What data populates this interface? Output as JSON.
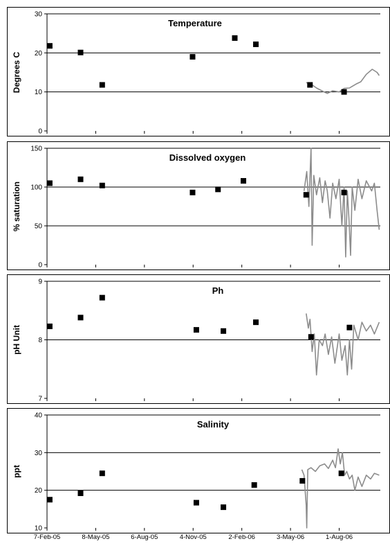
{
  "chart_data": [
    {
      "type": "scatter",
      "title": "Temperature",
      "ylabel": "Degrees C",
      "ylim": [
        0,
        30
      ],
      "yticks": [
        "0",
        "10",
        "20",
        "30"
      ],
      "grid": true,
      "series": [
        {
          "kind": "points",
          "points": [
            [
              "2005-02-12",
              21.8
            ],
            [
              "2005-04-10",
              20.1
            ],
            [
              "2005-05-20",
              11.8
            ],
            [
              "2005-11-03",
              19.0
            ],
            [
              "2006-01-20",
              23.8
            ],
            [
              "2006-02-28",
              22.2
            ],
            [
              "2006-06-08",
              11.8
            ],
            [
              "2006-08-10",
              10.0
            ]
          ]
        },
        {
          "kind": "line",
          "color": "#8c8c8c",
          "points": [
            [
              "2006-06-01",
              12.4
            ],
            [
              "2006-06-10",
              12.0
            ],
            [
              "2006-06-20",
              11.0
            ],
            [
              "2006-07-01",
              10.2
            ],
            [
              "2006-07-10",
              9.6
            ],
            [
              "2006-07-20",
              10.3
            ],
            [
              "2006-08-01",
              10.0
            ],
            [
              "2006-08-10",
              10.9
            ],
            [
              "2006-08-20",
              11.0
            ],
            [
              "2006-09-01",
              12.0
            ],
            [
              "2006-09-10",
              12.6
            ],
            [
              "2006-09-20",
              14.5
            ],
            [
              "2006-10-01",
              15.8
            ],
            [
              "2006-10-10",
              15.0
            ],
            [
              "2006-10-14",
              14.2
            ]
          ]
        }
      ]
    },
    {
      "type": "scatter",
      "title": "Dissolved oxygen",
      "ylabel": "% saturation",
      "ylim": [
        0,
        150
      ],
      "yticks": [
        "0",
        "50",
        "100",
        "150"
      ],
      "grid": true,
      "series": [
        {
          "kind": "points",
          "points": [
            [
              "2005-02-12",
              105
            ],
            [
              "2005-04-10",
              110
            ],
            [
              "2005-05-20",
              102
            ],
            [
              "2005-11-03",
              93
            ],
            [
              "2005-12-20",
              97
            ],
            [
              "2006-02-05",
              108
            ],
            [
              "2006-06-01",
              90
            ],
            [
              "2006-08-10",
              93
            ]
          ]
        },
        {
          "kind": "line",
          "color": "#8c8c8c",
          "points": [
            [
              "2006-05-28",
              95
            ],
            [
              "2006-06-02",
              120
            ],
            [
              "2006-06-06",
              75
            ],
            [
              "2006-06-10",
              150
            ],
            [
              "2006-06-12",
              25
            ],
            [
              "2006-06-15",
              115
            ],
            [
              "2006-06-20",
              90
            ],
            [
              "2006-06-26",
              112
            ],
            [
              "2006-07-01",
              80
            ],
            [
              "2006-07-06",
              108
            ],
            [
              "2006-07-10",
              95
            ],
            [
              "2006-07-15",
              60
            ],
            [
              "2006-07-20",
              105
            ],
            [
              "2006-07-26",
              85
            ],
            [
              "2006-08-01",
              110
            ],
            [
              "2006-08-06",
              50
            ],
            [
              "2006-08-10",
              100
            ],
            [
              "2006-08-13",
              10
            ],
            [
              "2006-08-16",
              95
            ],
            [
              "2006-08-19",
              60
            ],
            [
              "2006-08-22",
              12
            ],
            [
              "2006-08-25",
              100
            ],
            [
              "2006-08-30",
              70
            ],
            [
              "2006-09-05",
              110
            ],
            [
              "2006-09-12",
              85
            ],
            [
              "2006-09-20",
              108
            ],
            [
              "2006-09-30",
              95
            ],
            [
              "2006-10-05",
              105
            ],
            [
              "2006-10-10",
              70
            ],
            [
              "2006-10-14",
              45
            ]
          ]
        }
      ]
    },
    {
      "type": "scatter",
      "title": "Ph",
      "ylabel": "pH Unit",
      "ylim": [
        7,
        9
      ],
      "yticks": [
        "7",
        "8",
        "9"
      ],
      "grid": true,
      "series": [
        {
          "kind": "points",
          "points": [
            [
              "2005-02-12",
              8.23
            ],
            [
              "2005-04-10",
              8.38
            ],
            [
              "2005-05-20",
              8.72
            ],
            [
              "2005-11-10",
              8.17
            ],
            [
              "2005-12-30",
              8.15
            ],
            [
              "2006-02-28",
              8.3
            ],
            [
              "2006-06-10",
              8.05
            ],
            [
              "2006-08-20",
              8.21
            ]
          ]
        },
        {
          "kind": "line",
          "color": "#8c8c8c",
          "points": [
            [
              "2006-06-01",
              8.45
            ],
            [
              "2006-06-05",
              8.2
            ],
            [
              "2006-06-08",
              8.35
            ],
            [
              "2006-06-12",
              7.8
            ],
            [
              "2006-06-16",
              8.1
            ],
            [
              "2006-06-20",
              7.4
            ],
            [
              "2006-06-25",
              8.0
            ],
            [
              "2006-07-01",
              7.9
            ],
            [
              "2006-07-06",
              8.1
            ],
            [
              "2006-07-12",
              7.75
            ],
            [
              "2006-07-18",
              8.05
            ],
            [
              "2006-07-24",
              7.6
            ],
            [
              "2006-08-01",
              8.1
            ],
            [
              "2006-08-06",
              7.65
            ],
            [
              "2006-08-12",
              7.9
            ],
            [
              "2006-08-16",
              7.4
            ],
            [
              "2006-08-20",
              8.0
            ],
            [
              "2006-08-24",
              7.5
            ],
            [
              "2006-08-28",
              8.25
            ],
            [
              "2006-09-05",
              8.0
            ],
            [
              "2006-09-12",
              8.3
            ],
            [
              "2006-09-20",
              8.15
            ],
            [
              "2006-09-28",
              8.25
            ],
            [
              "2006-10-05",
              8.1
            ],
            [
              "2006-10-14",
              8.3
            ]
          ]
        }
      ]
    },
    {
      "type": "scatter",
      "title": "Salinity",
      "ylabel": "ppt",
      "ylim": [
        10,
        40
      ],
      "yticks": [
        "10",
        "20",
        "30",
        "40"
      ],
      "grid": true,
      "xticks": [
        "7-Feb-05",
        "8-May-05",
        "6-Aug-05",
        "4-Nov-05",
        "2-Feb-06",
        "3-May-06",
        "1-Aug-06"
      ],
      "series": [
        {
          "kind": "points",
          "points": [
            [
              "2005-02-12",
              17.5
            ],
            [
              "2005-04-10",
              19.2
            ],
            [
              "2005-05-20",
              24.5
            ],
            [
              "2005-11-10",
              16.7
            ],
            [
              "2005-12-30",
              15.5
            ],
            [
              "2006-02-25",
              21.4
            ],
            [
              "2006-05-25",
              22.5
            ],
            [
              "2006-08-05",
              24.5
            ]
          ]
        },
        {
          "kind": "line",
          "color": "#8c8c8c",
          "points": [
            [
              "2006-05-24",
              25.5
            ],
            [
              "2006-05-28",
              24.0
            ],
            [
              "2006-06-01",
              16.0
            ],
            [
              "2006-06-02",
              10.0
            ],
            [
              "2006-06-04",
              25.5
            ],
            [
              "2006-06-10",
              26.0
            ],
            [
              "2006-06-18",
              25.0
            ],
            [
              "2006-06-26",
              26.5
            ],
            [
              "2006-07-05",
              27.0
            ],
            [
              "2006-07-12",
              25.8
            ],
            [
              "2006-07-20",
              28.0
            ],
            [
              "2006-07-25",
              26.0
            ],
            [
              "2006-07-30",
              31.0
            ],
            [
              "2006-08-03",
              27.0
            ],
            [
              "2006-08-07",
              30.0
            ],
            [
              "2006-08-11",
              24.0
            ],
            [
              "2006-08-15",
              25.0
            ],
            [
              "2006-08-20",
              23.0
            ],
            [
              "2006-08-25",
              24.0
            ],
            [
              "2006-08-30",
              20.0
            ],
            [
              "2006-09-05",
              23.5
            ],
            [
              "2006-09-12",
              21.0
            ],
            [
              "2006-09-20",
              24.0
            ],
            [
              "2006-09-28",
              23.0
            ],
            [
              "2006-10-05",
              24.5
            ],
            [
              "2006-10-14",
              24.0
            ]
          ]
        }
      ]
    }
  ]
}
